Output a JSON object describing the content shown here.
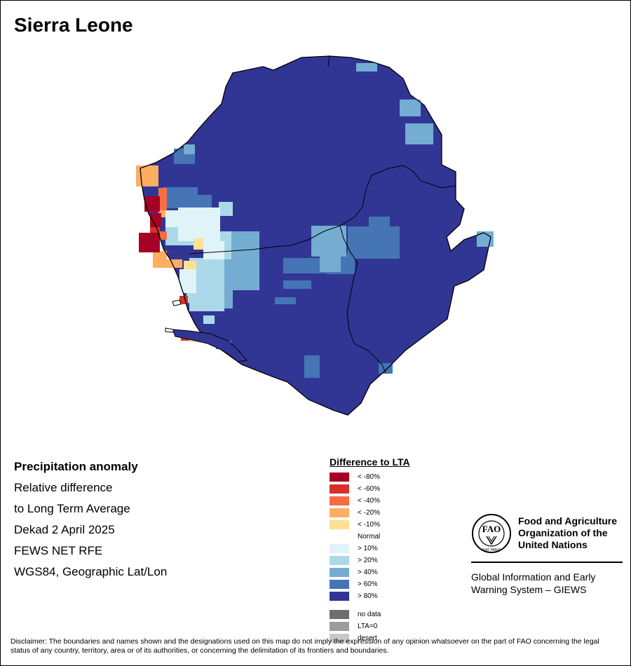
{
  "title": "Sierra Leone",
  "info": {
    "heading": "Precipitation anomaly",
    "lines": [
      "Relative difference",
      "to Long Term Average",
      "Dekad 2 April 2025",
      "FEWS NET RFE",
      "WGS84, Geographic Lat/Lon"
    ]
  },
  "legend": {
    "title": "Difference to LTA",
    "items": [
      {
        "label": "< -80%",
        "color": "#a50026"
      },
      {
        "label": "< -60%",
        "color": "#d73027"
      },
      {
        "label": "< -40%",
        "color": "#f46d43"
      },
      {
        "label": "< -20%",
        "color": "#fdae61"
      },
      {
        "label": "< -10%",
        "color": "#fee090"
      },
      {
        "label": "Normal",
        "color": "#ffffff"
      },
      {
        "label": "> 10%",
        "color": "#e0f3f8"
      },
      {
        "label": "> 20%",
        "color": "#abd9e9"
      },
      {
        "label": "> 40%",
        "color": "#74add1"
      },
      {
        "label": "> 60%",
        "color": "#4575b4"
      },
      {
        "label": "> 80%",
        "color": "#313695"
      }
    ],
    "extra": [
      {
        "label": "no data",
        "color": "#6e6e6e"
      },
      {
        "label": "LTA=0",
        "color": "#9c9c9c"
      },
      {
        "label": "desert",
        "color": "#c8c8c8"
      }
    ]
  },
  "organization": {
    "name_lines": [
      "Food and Agriculture",
      "Organization of the",
      "United Nations"
    ],
    "logo_text": "FAO",
    "logo_motto": "FIAT PANIS",
    "system_lines": [
      "Global Information and Early",
      "Warning System – GIEWS"
    ]
  },
  "disclaimer": "Disclaimer: The boundaries and names shown and the designations used on this map do not imply the expression of any opinion whatsoever on the part of FAO concerning the legal status of any country, territory, area or of its authorities, or concerning the delimitation of its frontiers and boundaries."
}
